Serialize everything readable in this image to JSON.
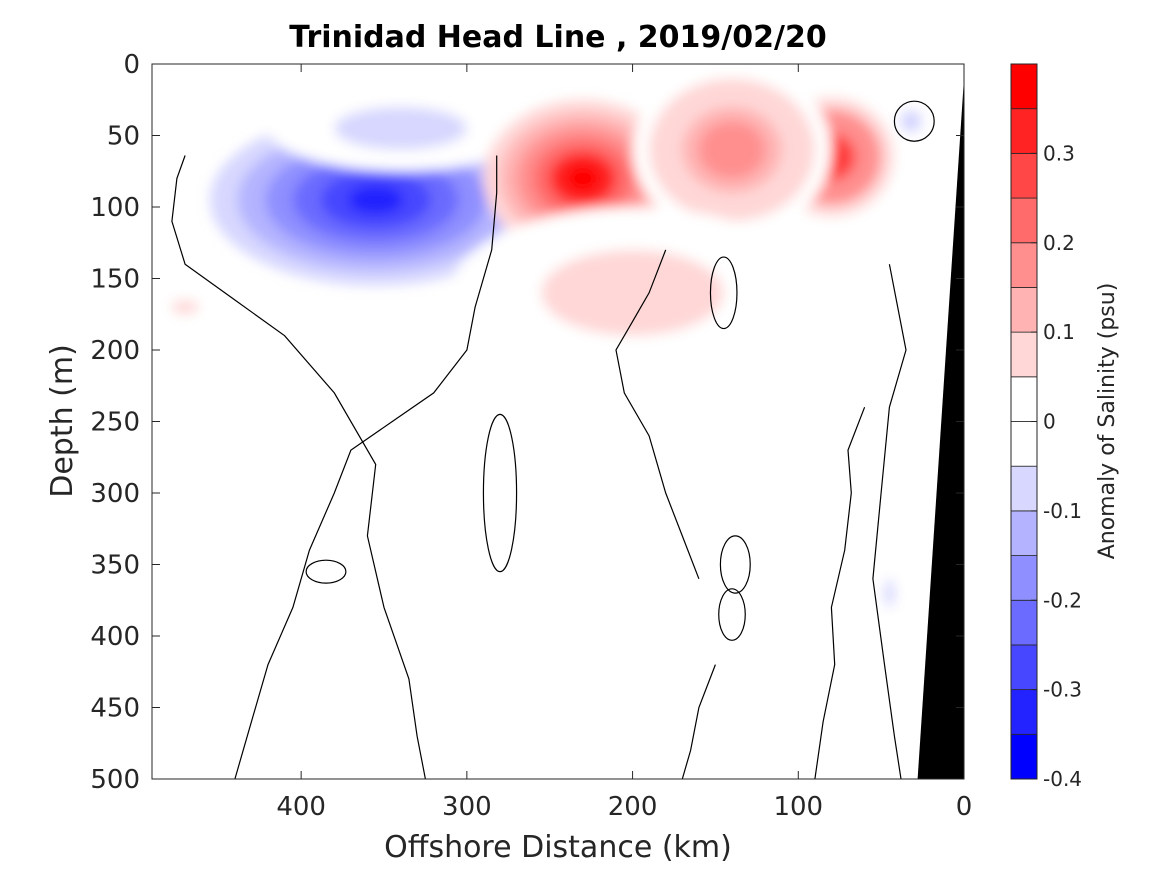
{
  "chart_data": {
    "type": "heatmap",
    "title": "Trinidad Head Line , 2019/02/20",
    "xlabel": "Offshore Distance (km)",
    "ylabel": "Depth (m)",
    "colorbar_label": "Anomaly of Salinity (psu)",
    "xlim": [
      490,
      0
    ],
    "ylim": [
      500,
      0
    ],
    "x_ticks": [
      "400",
      "300",
      "200",
      "100",
      "0"
    ],
    "y_ticks": [
      "0",
      "50",
      "100",
      "150",
      "200",
      "250",
      "300",
      "350",
      "400",
      "450",
      "500"
    ],
    "colorbar_ticks": [
      "-0.4",
      "-0.3",
      "-0.2",
      "-0.1",
      "0",
      "0.1",
      "0.2",
      "0.3"
    ],
    "colorbar_range": [
      -0.4,
      0.4
    ],
    "colorbar_levels": [
      {
        "from": -0.4,
        "to": -0.35,
        "color": "#0000ff"
      },
      {
        "from": -0.35,
        "to": -0.3,
        "color": "#2323ff"
      },
      {
        "from": -0.3,
        "to": -0.25,
        "color": "#4747ff"
      },
      {
        "from": -0.25,
        "to": -0.2,
        "color": "#6b6bff"
      },
      {
        "from": -0.2,
        "to": -0.15,
        "color": "#8f8fff"
      },
      {
        "from": -0.15,
        "to": -0.1,
        "color": "#b3b3ff"
      },
      {
        "from": -0.1,
        "to": -0.05,
        "color": "#d7d7ff"
      },
      {
        "from": -0.05,
        "to": 0.0,
        "color": "#ffffff"
      },
      {
        "from": 0.0,
        "to": 0.05,
        "color": "#ffffff"
      },
      {
        "from": 0.05,
        "to": 0.1,
        "color": "#ffd7d7"
      },
      {
        "from": 0.1,
        "to": 0.15,
        "color": "#ffb3b3"
      },
      {
        "from": 0.15,
        "to": 0.2,
        "color": "#ff8f8f"
      },
      {
        "from": 0.2,
        "to": 0.25,
        "color": "#ff6b6b"
      },
      {
        "from": 0.25,
        "to": 0.3,
        "color": "#ff4747"
      },
      {
        "from": 0.3,
        "to": 0.35,
        "color": "#ff2323"
      },
      {
        "from": 0.35,
        "to": 0.4,
        "color": "#ff0000"
      }
    ],
    "anomaly_features": [
      {
        "id": "fresh-core",
        "x_center": 355,
        "depth_center": 95,
        "x_halfwidth": 100,
        "depth_halfwidth": 60,
        "peak": -0.33
      },
      {
        "id": "fresh-shelf-edge",
        "x_center": 340,
        "depth_center": 45,
        "x_halfwidth": 80,
        "depth_halfwidth": 30,
        "peak": -0.08
      },
      {
        "id": "salty-core-west",
        "x_center": 230,
        "depth_center": 80,
        "x_halfwidth": 60,
        "depth_halfwidth": 55,
        "peak": 0.37
      },
      {
        "id": "salty-core-east",
        "x_center": 80,
        "depth_center": 65,
        "x_halfwidth": 45,
        "depth_halfwidth": 50,
        "peak": 0.3
      },
      {
        "id": "salty-lobe-mid",
        "x_center": 140,
        "depth_center": 60,
        "x_halfwidth": 60,
        "depth_halfwidth": 60,
        "peak": 0.18
      },
      {
        "id": "salty-tail-deep",
        "x_center": 200,
        "depth_center": 160,
        "x_halfwidth": 110,
        "depth_halfwidth": 60,
        "peak": 0.08
      },
      {
        "id": "small-fresh-nearshore",
        "x_center": 32,
        "depth_center": 40,
        "x_halfwidth": 10,
        "depth_halfwidth": 12,
        "peak": -0.12
      },
      {
        "id": "fresh-deep-nearshore",
        "x_center": 45,
        "depth_center": 370,
        "x_halfwidth": 10,
        "depth_halfwidth": 30,
        "peak": -0.07
      },
      {
        "id": "salty-offshore-patch",
        "x_center": 470,
        "depth_center": 170,
        "x_halfwidth": 25,
        "depth_halfwidth": 15,
        "peak": 0.07
      }
    ],
    "zero_contour": true,
    "topography": "black wedge of seafloor near 0-28 km offshore",
    "grid": false
  }
}
